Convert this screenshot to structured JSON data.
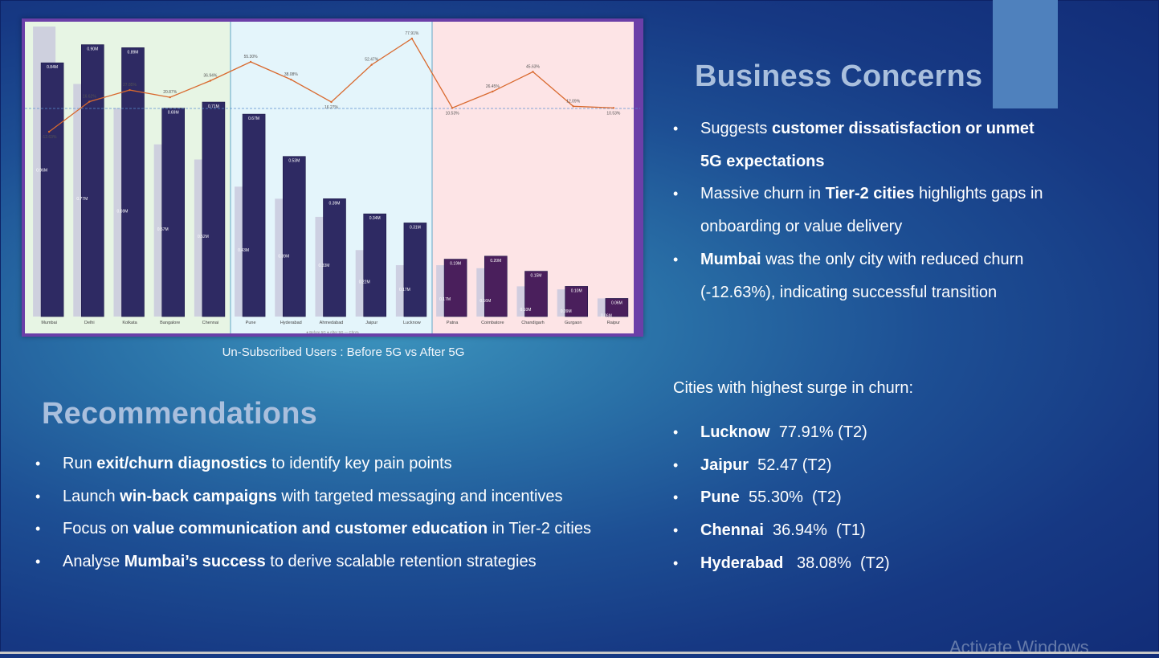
{
  "slide": {
    "chart_caption": "Un-Subscribed Users : Before 5G vs After 5G",
    "watermark": "Activate Windows"
  },
  "business_concerns": {
    "heading": "Business Concerns",
    "items": [
      {
        "pre": "Suggests ",
        "bold": "customer dissatisfaction or unmet 5G expectations",
        "post": ""
      },
      {
        "pre": "Massive churn in ",
        "bold": "Tier-2 cities",
        "post": " highlights gaps in onboarding or value delivery"
      },
      {
        "pre": "",
        "bold": "Mumbai",
        "post": " was the only city with reduced churn (-12.63%), indicating successful transition"
      }
    ]
  },
  "surge": {
    "title": "Cities with highest surge in churn:",
    "items": [
      {
        "city": "Lucknow",
        "text": "  77.91% (T2)"
      },
      {
        "city": "Jaipur",
        "text": "  52.47 (T2)"
      },
      {
        "city": "Pune",
        "text": "  55.30%  (T2)"
      },
      {
        "city": "Chennai",
        "text": "  36.94%  (T1)"
      },
      {
        "city": "Hyderabad",
        "text": "   38.08%  (T2)"
      }
    ]
  },
  "recommendations": {
    "heading": "Recommendations",
    "items": [
      {
        "pre": "Run ",
        "bold": "exit/churn diagnostics",
        "post": " to identify key pain points"
      },
      {
        "pre": "Launch ",
        "bold": "win-back campaigns",
        "post": " with targeted messaging and incentives"
      },
      {
        "pre": "Focus on ",
        "bold": "value communication and customer education",
        "post": " in Tier-2 cities"
      },
      {
        "pre": "Analyse ",
        "bold": "Mumbai’s success",
        "post": " to derive scalable retention strategies"
      }
    ]
  },
  "chart_data": {
    "type": "bar",
    "categories": [
      "Mumbai",
      "Delhi",
      "Kolkata",
      "Bangalore",
      "Chennai",
      "Pune",
      "Hyderabad",
      "Ahmedabad",
      "Jaipur",
      "Lucknow",
      "Patna",
      "Coimbatore",
      "Chandigarh",
      "Gurgaon",
      "Raipur"
    ],
    "series": [
      {
        "name": "Before 5G",
        "values": [
          0.96,
          0.77,
          0.69,
          0.57,
          0.52,
          0.43,
          0.39,
          0.33,
          0.22,
          0.17,
          0.17,
          0.16,
          0.1,
          0.09,
          0.06
        ],
        "labels": [
          "0.96M",
          "0.77M",
          "0.69M",
          "0.57M",
          "0.52M",
          "0.43M",
          "0.39M",
          "0.33M",
          "0.22M",
          "0.17M",
          "0.17M",
          "0.16M",
          "0.10M",
          "0.09M",
          "0.06M"
        ]
      },
      {
        "name": "After 5G",
        "values": [
          0.84,
          0.9,
          0.89,
          0.69,
          0.71,
          0.67,
          0.53,
          0.39,
          0.34,
          0.31,
          0.19,
          0.2,
          0.15,
          0.1,
          0.06
        ],
        "labels": [
          "0.84M",
          "0.90M",
          "0.89M",
          "0.69M",
          "0.71M",
          "0.67M",
          "0.53M",
          "0.39M",
          "0.34M",
          "0.31M",
          "0.19M",
          "0.20M",
          "0.15M",
          "0.10M",
          "0.06M"
        ]
      },
      {
        "name": "Chn%",
        "values": [
          -12.63,
          16.62,
          27.85,
          20.87,
          36.94,
          55.3,
          38.08,
          16.27,
          52.47,
          77.91,
          10.53,
          26.45,
          45.63,
          12.09,
          10.53
        ],
        "labels": [
          "-12.63%",
          "16.62%",
          "27.85%",
          "20.87%",
          "36.94%",
          "55.30%",
          "38.08%",
          "16.27%",
          "52.47%",
          "77.91%",
          "10.53%",
          "26.45%",
          "45.63%",
          "12.09%",
          "10.53%"
        ]
      }
    ],
    "legend": [
      "Before 5G",
      "After 5G",
      "Chn%"
    ],
    "groups": [
      {
        "color": "#e7f5e4"
      },
      {
        "color": "#e4f5fb"
      },
      {
        "color": "#fde4e6"
      }
    ],
    "group_split": [
      5,
      10
    ],
    "colors": {
      "before": "#c9c9dd",
      "after": "#2e2a63",
      "after_tier2": "#4a1f5c",
      "line": "#d9692e",
      "frame": "#6b3fa8"
    }
  }
}
